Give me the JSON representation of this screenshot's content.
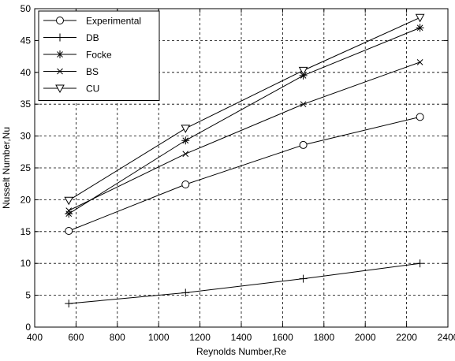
{
  "chart_data": {
    "type": "line",
    "title": "",
    "xlabel": "Reynolds Number,Re",
    "ylabel": "Nusselt Number,Nu",
    "xlim": [
      400,
      2400
    ],
    "ylim": [
      0,
      50
    ],
    "xticks": [
      400,
      600,
      800,
      1000,
      1200,
      1400,
      1600,
      1800,
      2000,
      2200,
      2400
    ],
    "yticks": [
      0,
      5,
      10,
      15,
      20,
      25,
      30,
      35,
      40,
      45,
      50
    ],
    "grid": true,
    "legend_position": "top-left",
    "series": [
      {
        "name": "Experimental",
        "marker": "circle",
        "x": [
          565,
          1130,
          1700,
          2265
        ],
        "y": [
          15.1,
          22.4,
          28.6,
          33.0
        ]
      },
      {
        "name": "DB",
        "marker": "plus",
        "x": [
          565,
          1130,
          1700,
          2265
        ],
        "y": [
          3.7,
          5.4,
          7.6,
          10.0
        ]
      },
      {
        "name": "Focke",
        "marker": "star",
        "x": [
          565,
          1130,
          1700,
          2265
        ],
        "y": [
          17.8,
          29.3,
          39.5,
          47.0
        ]
      },
      {
        "name": "BS",
        "marker": "cross",
        "x": [
          565,
          1130,
          1700,
          2265
        ],
        "y": [
          18.3,
          27.2,
          35.0,
          41.6
        ]
      },
      {
        "name": "CU",
        "marker": "triangle-down",
        "x": [
          565,
          1130,
          1700,
          2265
        ],
        "y": [
          19.9,
          31.2,
          40.3,
          48.6
        ]
      }
    ]
  }
}
